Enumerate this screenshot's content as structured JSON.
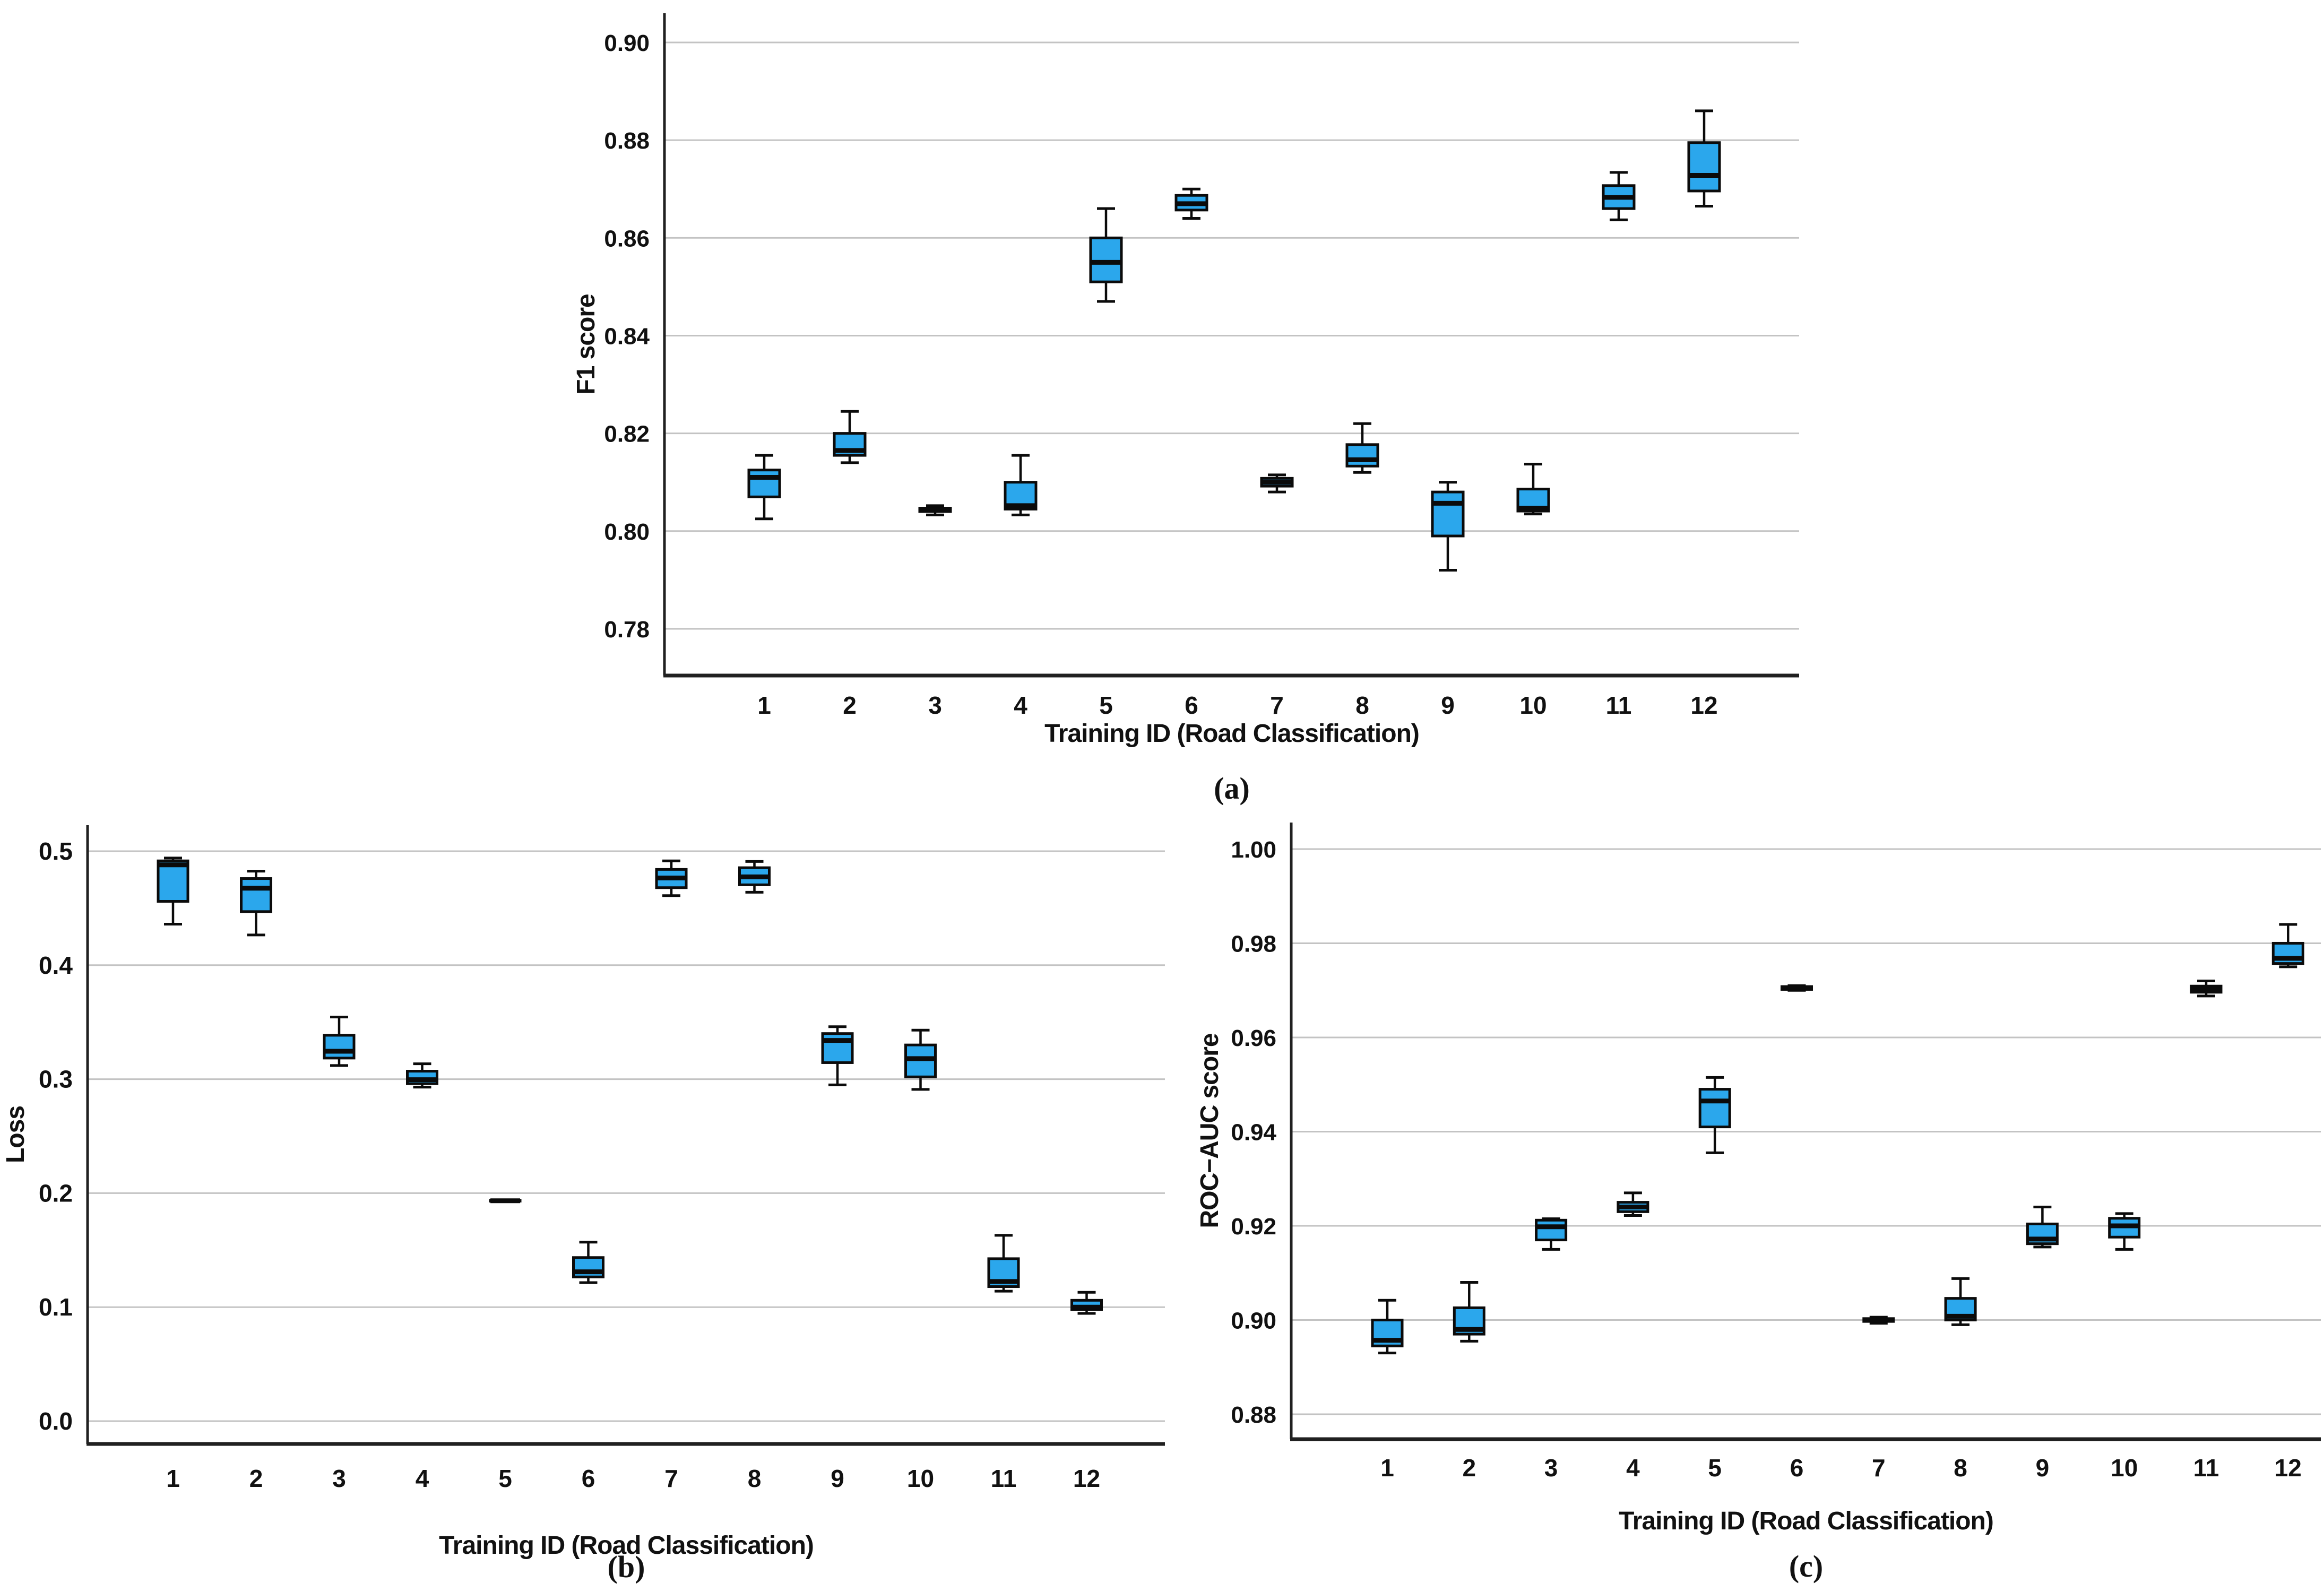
{
  "page": {
    "background": "#ffffff"
  },
  "colors": {
    "box_fill": "#2BA7EC",
    "box_stroke": "#0b0b0b",
    "median": "#0b0b0b",
    "whisker": "#0b0b0b",
    "gridline": "#c3c3c3",
    "axis": "#202020",
    "text": "#111111"
  },
  "chart_data": [
    {
      "id": "a",
      "type": "box",
      "caption": "(a)",
      "ylabel": "F1 score",
      "xlabel": "Training ID (Road Classification)",
      "grid": true,
      "legend": "none",
      "ylim": [
        0.77044,
        0.90597
      ],
      "yticks": [
        {
          "value": 0.9,
          "label": "0.90"
        },
        {
          "value": 0.88,
          "label": "0.88"
        },
        {
          "value": 0.86,
          "label": "0.86"
        },
        {
          "value": 0.84,
          "label": "0.84"
        },
        {
          "value": 0.82,
          "label": "0.82"
        },
        {
          "value": 0.8,
          "label": "0.80"
        },
        {
          "value": 0.78,
          "label": "0.78"
        }
      ],
      "categories": [
        "1",
        "2",
        "3",
        "4",
        "5",
        "6",
        "7",
        "8",
        "9",
        "10",
        "11",
        "12"
      ],
      "boxes": [
        {
          "lo": 0.8025,
          "q1": 0.807,
          "med": 0.811,
          "q3": 0.8125,
          "hi": 0.8155
        },
        {
          "lo": 0.814,
          "q1": 0.8155,
          "med": 0.8165,
          "q3": 0.82,
          "hi": 0.8245
        },
        {
          "lo": 0.8033,
          "q1": 0.804,
          "med": 0.8043,
          "q3": 0.8047,
          "hi": 0.8052
        },
        {
          "lo": 0.8033,
          "q1": 0.8045,
          "med": 0.8052,
          "q3": 0.81,
          "hi": 0.8155
        },
        {
          "lo": 0.847,
          "q1": 0.851,
          "med": 0.855,
          "q3": 0.86,
          "hi": 0.866
        },
        {
          "lo": 0.864,
          "q1": 0.8657,
          "med": 0.867,
          "q3": 0.8687,
          "hi": 0.87
        },
        {
          "lo": 0.808,
          "q1": 0.8092,
          "med": 0.81,
          "q3": 0.8108,
          "hi": 0.8115
        },
        {
          "lo": 0.812,
          "q1": 0.8133,
          "med": 0.8146,
          "q3": 0.8177,
          "hi": 0.822
        },
        {
          "lo": 0.792,
          "q1": 0.799,
          "med": 0.8057,
          "q3": 0.808,
          "hi": 0.81
        },
        {
          "lo": 0.8035,
          "q1": 0.8041,
          "med": 0.8047,
          "q3": 0.8086,
          "hi": 0.8137
        },
        {
          "lo": 0.8637,
          "q1": 0.866,
          "med": 0.8683,
          "q3": 0.8707,
          "hi": 0.8734
        },
        {
          "lo": 0.8665,
          "q1": 0.8696,
          "med": 0.8728,
          "q3": 0.8795,
          "hi": 0.886
        }
      ]
    },
    {
      "id": "b",
      "type": "box",
      "caption": "(b)",
      "ylabel": "Loss",
      "xlabel": "Training ID (Road Classification)",
      "grid": true,
      "legend": "none",
      "ylim": [
        -0.02002,
        0.52281
      ],
      "yticks": [
        {
          "value": 0.5,
          "label": "0.5"
        },
        {
          "value": 0.4,
          "label": "0.4"
        },
        {
          "value": 0.3,
          "label": "0.3"
        },
        {
          "value": 0.2,
          "label": "0.2"
        },
        {
          "value": 0.1,
          "label": "0.1"
        },
        {
          "value": 0.0,
          "label": "0.0"
        }
      ],
      "categories": [
        "1",
        "2",
        "3",
        "4",
        "5",
        "6",
        "7",
        "8",
        "9",
        "10",
        "11",
        "12"
      ],
      "boxes": [
        {
          "lo": 0.436,
          "q1": 0.456,
          "med": 0.488,
          "q3": 0.4915,
          "hi": 0.494
        },
        {
          "lo": 0.4265,
          "q1": 0.447,
          "med": 0.4675,
          "q3": 0.476,
          "hi": 0.4825
        },
        {
          "lo": 0.312,
          "q1": 0.3185,
          "med": 0.3245,
          "q3": 0.3385,
          "hi": 0.3545
        },
        {
          "lo": 0.293,
          "q1": 0.296,
          "med": 0.2995,
          "q3": 0.307,
          "hi": 0.3135
        },
        {
          "lo": 0.1925,
          "q1": 0.193,
          "med": 0.1933,
          "q3": 0.1937,
          "hi": 0.194
        },
        {
          "lo": 0.1215,
          "q1": 0.1265,
          "med": 0.131,
          "q3": 0.1435,
          "hi": 0.157
        },
        {
          "lo": 0.461,
          "q1": 0.468,
          "med": 0.4765,
          "q3": 0.484,
          "hi": 0.4915
        },
        {
          "lo": 0.464,
          "q1": 0.4705,
          "med": 0.4775,
          "q3": 0.4855,
          "hi": 0.491
        },
        {
          "lo": 0.295,
          "q1": 0.3145,
          "med": 0.334,
          "q3": 0.34,
          "hi": 0.346
        },
        {
          "lo": 0.291,
          "q1": 0.302,
          "med": 0.318,
          "q3": 0.33,
          "hi": 0.343
        },
        {
          "lo": 0.114,
          "q1": 0.118,
          "med": 0.1225,
          "q3": 0.1425,
          "hi": 0.163
        },
        {
          "lo": 0.0945,
          "q1": 0.098,
          "med": 0.1,
          "q3": 0.106,
          "hi": 0.113
        }
      ]
    },
    {
      "id": "c",
      "type": "box",
      "caption": "(c)",
      "ylabel": "ROC−AUC score",
      "xlabel": "Training ID (Road Classification)",
      "grid": true,
      "legend": "none",
      "ylim": [
        0.8747,
        1.00563
      ],
      "yticks": [
        {
          "value": 1.0,
          "label": "1.00"
        },
        {
          "value": 0.98,
          "label": "0.98"
        },
        {
          "value": 0.96,
          "label": "0.96"
        },
        {
          "value": 0.94,
          "label": "0.94"
        },
        {
          "value": 0.92,
          "label": "0.92"
        },
        {
          "value": 0.9,
          "label": "0.90"
        },
        {
          "value": 0.88,
          "label": "0.88"
        }
      ],
      "categories": [
        "1",
        "2",
        "3",
        "4",
        "5",
        "6",
        "7",
        "8",
        "9",
        "10",
        "11",
        "12"
      ],
      "boxes": [
        {
          "lo": 0.893,
          "q1": 0.8945,
          "med": 0.8957,
          "q3": 0.9,
          "hi": 0.9042
        },
        {
          "lo": 0.8955,
          "q1": 0.897,
          "med": 0.898,
          "q3": 0.9026,
          "hi": 0.908
        },
        {
          "lo": 0.915,
          "q1": 0.917,
          "med": 0.9198,
          "q3": 0.9212,
          "hi": 0.9215
        },
        {
          "lo": 0.9222,
          "q1": 0.923,
          "med": 0.924,
          "q3": 0.925,
          "hi": 0.927
        },
        {
          "lo": 0.9355,
          "q1": 0.941,
          "med": 0.9465,
          "q3": 0.949,
          "hi": 0.9515
        },
        {
          "lo": 0.97,
          "q1": 0.9702,
          "med": 0.9705,
          "q3": 0.9708,
          "hi": 0.971
        },
        {
          "lo": 0.8993,
          "q1": 0.8997,
          "med": 0.9,
          "q3": 0.9003,
          "hi": 0.9006
        },
        {
          "lo": 0.899,
          "q1": 0.9,
          "med": 0.9008,
          "q3": 0.9046,
          "hi": 0.9088
        },
        {
          "lo": 0.9155,
          "q1": 0.9162,
          "med": 0.9172,
          "q3": 0.9204,
          "hi": 0.924
        },
        {
          "lo": 0.915,
          "q1": 0.9176,
          "med": 0.92,
          "q3": 0.9216,
          "hi": 0.9226
        },
        {
          "lo": 0.9688,
          "q1": 0.9696,
          "med": 0.9703,
          "q3": 0.9709,
          "hi": 0.972
        },
        {
          "lo": 0.975,
          "q1": 0.9757,
          "med": 0.9768,
          "q3": 0.98,
          "hi": 0.984
        }
      ]
    }
  ]
}
